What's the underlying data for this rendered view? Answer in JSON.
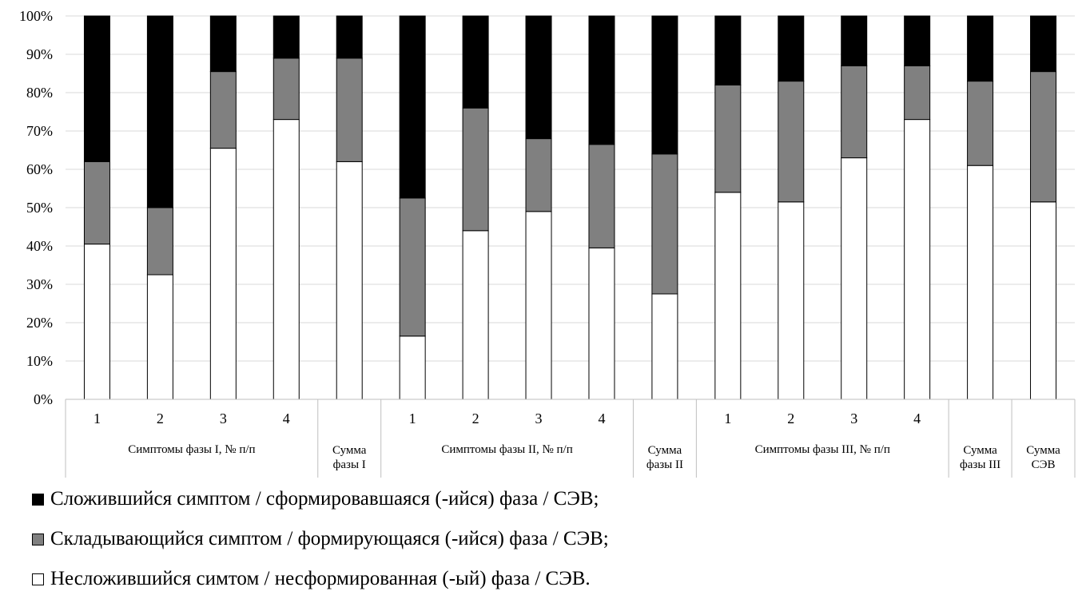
{
  "chart_data": {
    "type": "bar",
    "stacked": true,
    "normalized": true,
    "ylim": [
      0,
      100
    ],
    "y_ticks": [
      "0%",
      "10%",
      "20%",
      "30%",
      "40%",
      "50%",
      "60%",
      "70%",
      "80%",
      "90%",
      "100%"
    ],
    "grid": true,
    "legend_position": "bottom-left",
    "categories": [
      "1",
      "2",
      "3",
      "4",
      "",
      "1",
      "2",
      "3",
      "4",
      "",
      "1",
      "2",
      "3",
      "4",
      "",
      ""
    ],
    "category_groups": [
      {
        "label": "Симптомы фазы I, № п/п",
        "count": 4
      },
      {
        "label": "Сумма фазы I",
        "count": 1
      },
      {
        "label": "Симптомы фазы II, № п/п",
        "count": 4
      },
      {
        "label": "Сумма фазы II",
        "count": 1
      },
      {
        "label": "Симптомы фазы III, № п/п",
        "count": 4
      },
      {
        "label": "Сумма фазы III",
        "count": 1
      },
      {
        "label": "Сумма СЭВ",
        "count": 1
      }
    ],
    "series": [
      {
        "name": "Несложившийся симтом / несформированная (-ый) фаза / СЭВ.",
        "color": "#ffffff",
        "values": [
          40.5,
          32.5,
          65.5,
          73,
          62,
          16.5,
          44,
          49,
          39.5,
          27.5,
          54,
          51.5,
          63,
          73,
          61,
          51.5
        ]
      },
      {
        "name": "Складывающийся симптом / формирующаяся (-ийся) фаза / СЭВ;",
        "color": "#808080",
        "values": [
          21.5,
          17.5,
          20,
          16,
          27,
          36,
          32,
          19,
          27,
          36.5,
          28,
          31.5,
          24,
          14,
          22,
          34
        ]
      },
      {
        "name": "Сложившийся симптом / сформировавшаяся (-ийся) фаза / СЭВ;",
        "color": "#000000",
        "values": [
          38,
          50,
          14.5,
          11,
          11,
          47.5,
          24,
          32,
          33.5,
          36,
          18,
          17,
          13,
          13,
          17,
          14.5
        ]
      }
    ],
    "legend_order": [
      2,
      1,
      0
    ]
  }
}
